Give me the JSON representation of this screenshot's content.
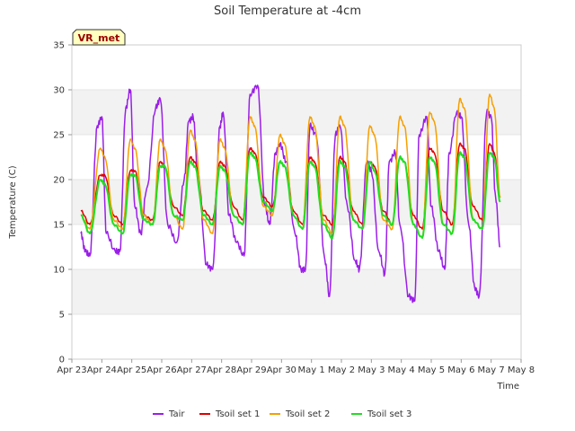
{
  "chart_data": {
    "type": "line",
    "title": "Soil Temperature at -4cm",
    "xlabel": "Time",
    "ylabel": "Temperature (C)",
    "ylim": [
      0,
      35
    ],
    "yticks": [
      0,
      5,
      10,
      15,
      20,
      25,
      30,
      35
    ],
    "xlim": [
      0,
      15
    ],
    "xticks": [
      {
        "x": 0,
        "label": "Apr 23"
      },
      {
        "x": 1,
        "label": "Apr 24"
      },
      {
        "x": 2,
        "label": "Apr 25"
      },
      {
        "x": 3,
        "label": "Apr 26"
      },
      {
        "x": 4,
        "label": "Apr 27"
      },
      {
        "x": 5,
        "label": "Apr 28"
      },
      {
        "x": 6,
        "label": "Apr 29"
      },
      {
        "x": 7,
        "label": "Apr 30"
      },
      {
        "x": 8,
        "label": "May 1"
      },
      {
        "x": 9,
        "label": "May 2"
      },
      {
        "x": 10,
        "label": "May 3"
      },
      {
        "x": 11,
        "label": "May 4"
      },
      {
        "x": 12,
        "label": "May 5"
      },
      {
        "x": 13,
        "label": "May 6"
      },
      {
        "x": 14,
        "label": "May 7"
      },
      {
        "x": 15,
        "label": "May 8"
      }
    ],
    "grid": true,
    "legend_position": "bottom",
    "annotation": "VR_met",
    "series": [
      {
        "name": "Tair",
        "color": "#9a1fe8",
        "x": [
          0.3,
          0.45,
          0.6,
          0.85,
          1.0,
          1.15,
          1.45,
          1.6,
          1.8,
          1.95,
          2.1,
          2.3,
          2.5,
          2.8,
          2.95,
          3.2,
          3.5,
          3.75,
          3.9,
          4.05,
          4.2,
          4.5,
          4.7,
          4.95,
          5.05,
          5.25,
          5.5,
          5.75,
          5.95,
          6.2,
          6.45,
          6.6,
          6.8,
          6.95,
          7.15,
          7.45,
          7.65,
          7.8,
          7.95,
          8.15,
          8.45,
          8.6,
          8.8,
          8.95,
          9.2,
          9.45,
          9.6,
          9.85,
          10.0,
          10.25,
          10.45,
          10.6,
          10.8,
          10.95,
          11.25,
          11.45,
          11.6,
          11.85,
          12.0,
          12.25,
          12.45,
          12.6,
          12.85,
          13.0,
          13.25,
          13.45,
          13.6,
          13.85,
          14.0,
          14.15,
          14.3
        ],
        "y": [
          14,
          12,
          11.5,
          26,
          27,
          14,
          12,
          12,
          28,
          30,
          17,
          14,
          19,
          28,
          29,
          15,
          13,
          20,
          26.5,
          27,
          21,
          10.5,
          10,
          26,
          27.5,
          16,
          13,
          11.5,
          29.5,
          30.5,
          17,
          15,
          23,
          24,
          22,
          14,
          10,
          10,
          26,
          25,
          11,
          7,
          25,
          26,
          17,
          11,
          10,
          22,
          21,
          12,
          9.5,
          22,
          23,
          15,
          7,
          6.5,
          25,
          27,
          17,
          12,
          10,
          23,
          27.5,
          27,
          15,
          8,
          7,
          27.5,
          27,
          18,
          12.5
        ]
      },
      {
        "name": "Tsoil set 1",
        "color": "#e00000",
        "x": [
          0.3,
          0.6,
          0.95,
          1.1,
          1.4,
          1.7,
          1.95,
          2.1,
          2.4,
          2.7,
          2.95,
          3.1,
          3.4,
          3.7,
          3.95,
          4.1,
          4.4,
          4.7,
          4.95,
          5.1,
          5.4,
          5.7,
          5.95,
          6.1,
          6.4,
          6.7,
          6.95,
          7.1,
          7.4,
          7.7,
          7.95,
          8.1,
          8.4,
          8.7,
          8.95,
          9.1,
          9.4,
          9.7,
          9.95,
          10.1,
          10.4,
          10.7,
          10.95,
          11.1,
          11.4,
          11.7,
          11.95,
          12.1,
          12.4,
          12.7,
          12.95,
          13.1,
          13.4,
          13.7,
          13.95,
          14.1,
          14.3
        ],
        "y": [
          16.5,
          15,
          20.5,
          20.5,
          16,
          15,
          21,
          21,
          16,
          15.5,
          22,
          21.5,
          17,
          16,
          22.5,
          22,
          16.5,
          15.5,
          22,
          21.5,
          17,
          15.5,
          23.5,
          23,
          18,
          17,
          22,
          21.5,
          16.5,
          15,
          22.5,
          22,
          16,
          15,
          22.5,
          22,
          16.5,
          15,
          22,
          21.5,
          16.5,
          15,
          22.5,
          22,
          16,
          14.5,
          23.5,
          23,
          16.5,
          15,
          24,
          23.5,
          17,
          15.5,
          24,
          23,
          18
        ]
      },
      {
        "name": "Tsoil set 2",
        "color": "#f5a000",
        "x": [
          0.3,
          0.6,
          0.95,
          1.1,
          1.4,
          1.7,
          1.95,
          2.1,
          2.4,
          2.7,
          2.95,
          3.1,
          3.4,
          3.7,
          3.95,
          4.1,
          4.4,
          4.7,
          4.95,
          5.1,
          5.4,
          5.7,
          5.95,
          6.1,
          6.4,
          6.7,
          6.95,
          7.1,
          7.4,
          7.7,
          7.95,
          8.1,
          8.4,
          8.7,
          8.95,
          9.1,
          9.4,
          9.7,
          9.95,
          10.1,
          10.4,
          10.7,
          10.95,
          11.1,
          11.4,
          11.7,
          11.95,
          12.1,
          12.4,
          12.7,
          12.95,
          13.1,
          13.4,
          13.7,
          13.95,
          14.1,
          14.3
        ],
        "y": [
          16,
          14.5,
          23.5,
          22.5,
          15.5,
          14.5,
          24.5,
          23.5,
          16,
          15,
          24.5,
          23.5,
          16,
          14.5,
          25.5,
          24.5,
          15.5,
          14,
          24.5,
          23.5,
          16,
          15,
          27,
          26,
          17,
          16,
          25,
          24,
          16,
          14.5,
          27,
          26,
          15.5,
          14,
          27,
          26,
          15.5,
          14.5,
          26,
          25,
          15.5,
          14.5,
          27,
          26,
          15,
          13.5,
          27.5,
          26.5,
          15,
          14,
          29,
          28,
          15.5,
          14.5,
          29.5,
          28,
          18
        ]
      },
      {
        "name": "Tsoil set 3",
        "color": "#22dd22",
        "x": [
          0.3,
          0.6,
          0.95,
          1.1,
          1.4,
          1.7,
          1.95,
          2.1,
          2.4,
          2.7,
          2.95,
          3.1,
          3.4,
          3.7,
          3.95,
          4.1,
          4.4,
          4.7,
          4.95,
          5.1,
          5.4,
          5.7,
          5.95,
          6.1,
          6.4,
          6.7,
          6.95,
          7.1,
          7.4,
          7.7,
          7.95,
          8.1,
          8.4,
          8.7,
          8.95,
          9.1,
          9.4,
          9.7,
          9.95,
          10.1,
          10.4,
          10.7,
          10.95,
          11.1,
          11.4,
          11.7,
          11.95,
          12.1,
          12.4,
          12.7,
          12.95,
          13.1,
          13.4,
          13.7,
          13.95,
          14.1,
          14.3
        ],
        "y": [
          16,
          14,
          20,
          19.5,
          15,
          14,
          20.5,
          20.5,
          15.5,
          15,
          21.5,
          21.5,
          16,
          15.5,
          22,
          21.5,
          16,
          15,
          21.5,
          21,
          16,
          15,
          23,
          22.5,
          17.5,
          16.5,
          22,
          21.5,
          16,
          14.5,
          22,
          21.5,
          15,
          13.5,
          22,
          21.5,
          15.5,
          14.5,
          22,
          21,
          16,
          15,
          22.5,
          22,
          15,
          13.5,
          22.5,
          22,
          15,
          14,
          23,
          22.5,
          15.5,
          14.5,
          23,
          22.5,
          17.5
        ]
      }
    ]
  }
}
